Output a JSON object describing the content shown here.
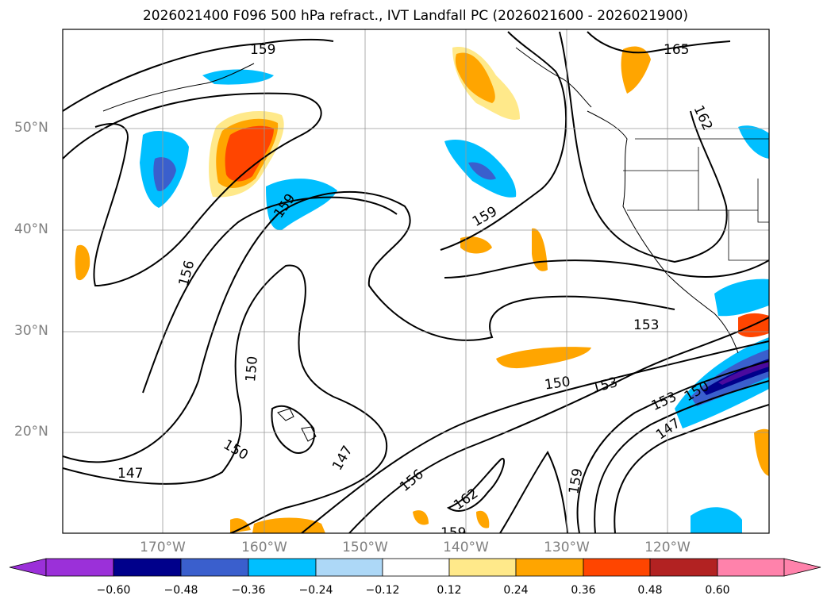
{
  "title": "2026021400 F096 500 hPa refract., IVT Landfall PC (2026021600 - 2026021900)",
  "lat_ticks": [
    "50°N",
    "40°N",
    "30°N",
    "20°N"
  ],
  "lon_ticks": [
    "170°W",
    "160°W",
    "150°W",
    "140°W",
    "130°W",
    "120°W"
  ],
  "contour_labels": [
    "159",
    "165",
    "162",
    "156",
    "159",
    "159",
    "153",
    "150",
    "153",
    "150",
    "153",
    "147",
    "150",
    "150",
    "147",
    "147",
    "156",
    "162",
    "159",
    "159"
  ],
  "colorbar": {
    "ticks": [
      "−0.60",
      "−0.48",
      "−0.36",
      "−0.24",
      "−0.12",
      "0.12",
      "0.24",
      "0.36",
      "0.48",
      "0.60"
    ],
    "colors": [
      "#9b30d9",
      "#4b0a9e",
      "#00008b",
      "#3a5fcd",
      "#00bfff",
      "#add8f7",
      "#ffffff",
      "#ffe98a",
      "#ffa500",
      "#ff4500",
      "#b22222",
      "#ff82ab"
    ]
  }
}
